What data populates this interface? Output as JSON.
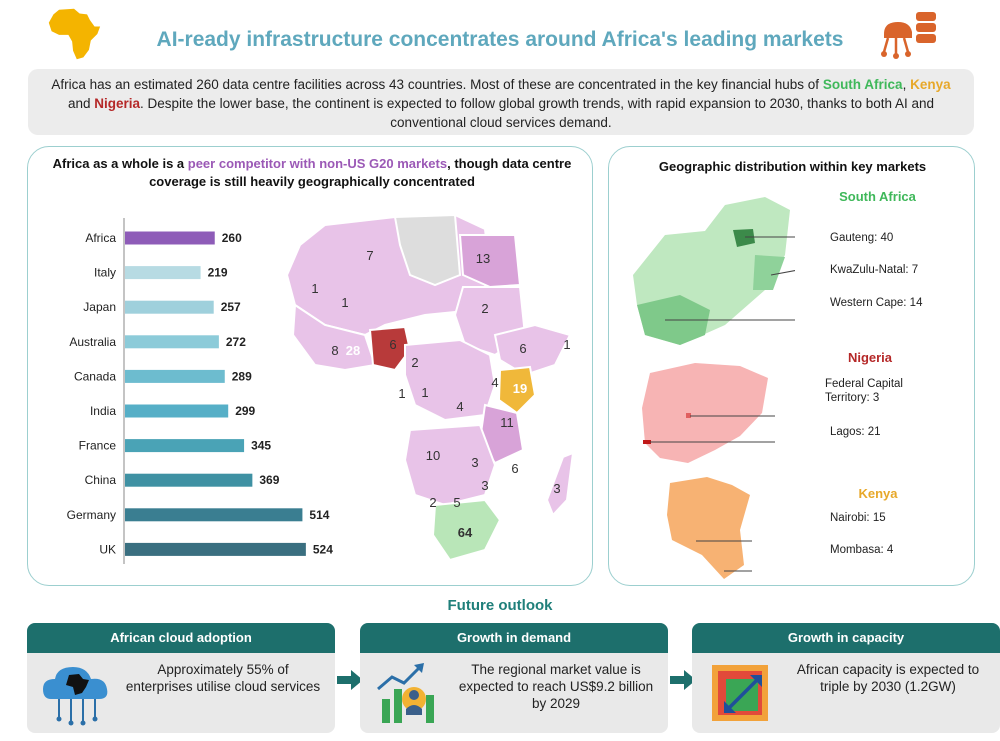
{
  "title": "AI-ready infrastructure concentrates around Africa's leading markets",
  "intro": {
    "text_1": "Africa has an estimated 260 data centre facilities across 43 countries. Most of these are concentrated in the key financial hubs of ",
    "south_africa": "South Africa",
    "comma": ", ",
    "kenya": "Kenya",
    "and": " and ",
    "nigeria": "Nigeria",
    "text_2": ". Despite the lower base, the continent is expected to follow global growth trends, with rapid expansion to 2030, thanks to both AI and conventional cloud services demand."
  },
  "left_panel": {
    "title_1": "Africa as a whole is a ",
    "title_highlight": "peer competitor with non-US G20 markets",
    "title_2": ", though data centre coverage is still heavily geographically concentrated"
  },
  "chart_data": [
    {
      "type": "bar",
      "orientation": "horizontal",
      "categories": [
        "Africa",
        "Italy",
        "Japan",
        "Australia",
        "Canada",
        "India",
        "France",
        "China",
        "Germany",
        "UK"
      ],
      "values": [
        260,
        219,
        257,
        272,
        289,
        299,
        345,
        369,
        514,
        524
      ],
      "colors": [
        "#8e5cb8",
        "#b7dbe3",
        "#9fd0dc",
        "#8ccbd9",
        "#6dbccf",
        "#56afc7",
        "#4aa3b6",
        "#3f91a3",
        "#3a7e91",
        "#3a6f80"
      ],
      "title": "",
      "xlabel": "",
      "ylabel": ""
    },
    {
      "type": "map",
      "region": "Africa",
      "labels": [
        "7",
        "13",
        "1",
        "1",
        "2",
        "6",
        "8",
        "28",
        "6",
        "1",
        "2",
        "4",
        "19",
        "1",
        "1",
        "4",
        "11",
        "10",
        "3",
        "6",
        "3",
        "2",
        "5",
        "3",
        "64"
      ],
      "highlight_colors": {
        "nigeria": "#b83a3a",
        "kenya": "#e7a82a",
        "south_africa": "#b9e6b8",
        "other": "#e8c3e8",
        "no_data": "#dddddd"
      }
    }
  ],
  "right_panel": {
    "title": "Geographic distribution within key markets",
    "south_africa": {
      "name": "South Africa",
      "color": "#3fb85a",
      "callouts": [
        "Gauteng: 40",
        "KwaZulu-Natal: 7",
        "Western Cape: 14"
      ]
    },
    "nigeria": {
      "name": "Nigeria",
      "color": "#b52828",
      "callouts": [
        "Federal Capital Territory: 3",
        "Lagos: 21"
      ]
    },
    "kenya": {
      "name": "Kenya",
      "color": "#e7a82a",
      "callouts": [
        "Nairobi: 15",
        "Mombasa: 4"
      ]
    }
  },
  "future": {
    "title": "Future outlook",
    "cards": [
      {
        "header": "African cloud adoption",
        "text": "Approximately 55% of enterprises utilise cloud services",
        "icon": "cloud-network-icon"
      },
      {
        "header": "Growth in demand",
        "text": "The regional market value is expected to reach US$9.2 billion by 2029",
        "icon": "growth-chart-icon"
      },
      {
        "header": "Growth in capacity",
        "text": "African capacity is expected to triple by 2030 (1.2GW)",
        "icon": "expand-capacity-icon"
      }
    ],
    "accent": "#1d6f6c"
  }
}
